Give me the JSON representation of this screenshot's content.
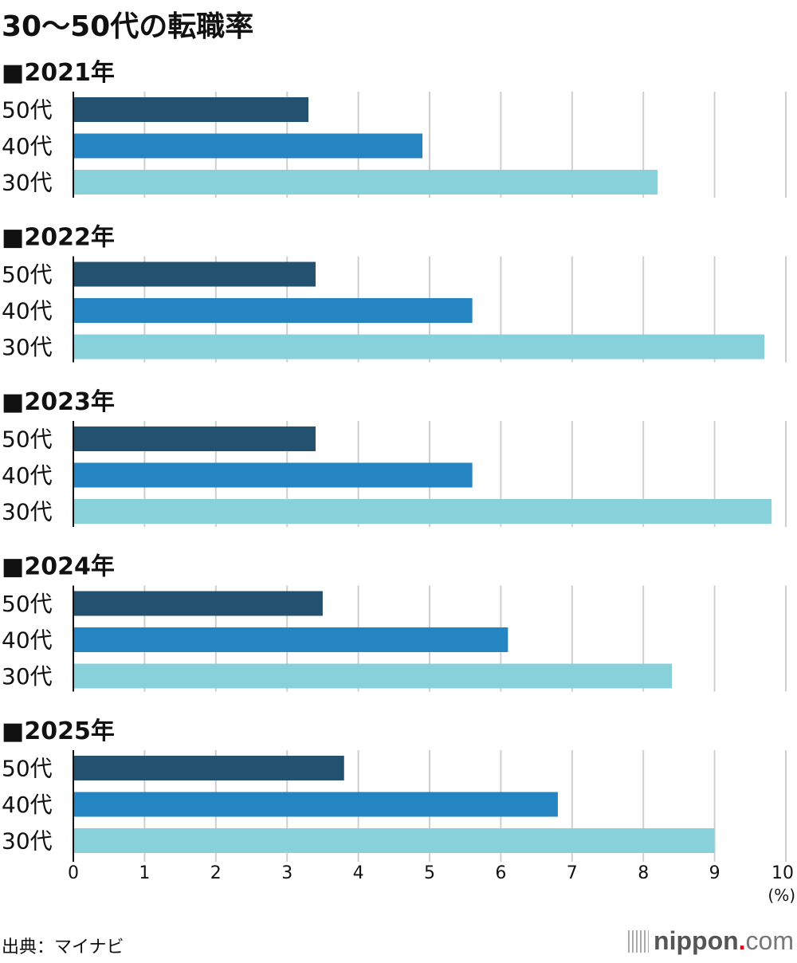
{
  "chart_data": {
    "type": "bar",
    "orientation": "horizontal",
    "title": "30〜50代の転職率",
    "unit_label": "(%)",
    "xlim": [
      0,
      10
    ],
    "x_ticks": [
      "0",
      "1",
      "2",
      "3",
      "4",
      "5",
      "6",
      "7",
      "8",
      "9",
      "10"
    ],
    "grid": true,
    "categories": [
      "50代",
      "40代",
      "30代"
    ],
    "colors": {
      "50代": "#22526f",
      "40代": "#2585c2",
      "30代": "#88d1da"
    },
    "panels": [
      {
        "label": "■2021年",
        "values": [
          3.3,
          4.9,
          8.2
        ]
      },
      {
        "label": "■2022年",
        "values": [
          3.4,
          5.6,
          9.7
        ]
      },
      {
        "label": "■2023年",
        "values": [
          3.4,
          5.6,
          9.8
        ]
      },
      {
        "label": "■2024年",
        "values": [
          3.5,
          6.1,
          8.4
        ]
      },
      {
        "label": "■2025年",
        "values": [
          3.8,
          6.8,
          9.0
        ]
      }
    ]
  },
  "source": "出典：マイナビ",
  "logo": {
    "name": "nippon",
    "dot": ".",
    "tld": "com"
  }
}
